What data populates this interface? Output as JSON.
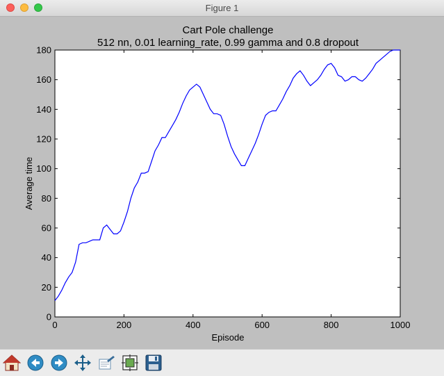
{
  "window": {
    "title": "Figure 1"
  },
  "toolbar": {
    "buttons": [
      {
        "name": "home-button",
        "icon": "home-icon"
      },
      {
        "name": "back-button",
        "icon": "back-arrow-icon"
      },
      {
        "name": "forward-button",
        "icon": "forward-arrow-icon"
      },
      {
        "name": "pan-button",
        "icon": "pan-move-icon"
      },
      {
        "name": "zoom-rect-button",
        "icon": "zoom-rectangle-icon"
      },
      {
        "name": "subplots-button",
        "icon": "subplots-config-icon"
      },
      {
        "name": "save-button",
        "icon": "save-floppy-icon"
      }
    ]
  },
  "chart_data": {
    "type": "line",
    "title": "Cart Pole challenge",
    "subtitle": "512 nn, 0.01 learning_rate, 0.99 gamma and 0.8 dropout",
    "xlabel": "Episode",
    "ylabel": "Average time",
    "xlim": [
      0,
      1000
    ],
    "ylim": [
      0,
      180
    ],
    "xticks": [
      0,
      200,
      400,
      600,
      800,
      1000
    ],
    "yticks": [
      0,
      20,
      40,
      60,
      80,
      100,
      120,
      140,
      160,
      180
    ],
    "grid": false,
    "legend": "none",
    "line_color": "#0000ff",
    "series": [
      {
        "x": [
          0,
          10,
          20,
          30,
          40,
          50,
          60,
          65,
          70,
          80,
          90,
          100,
          110,
          120,
          130,
          140,
          150,
          160,
          170,
          180,
          190,
          200,
          210,
          220,
          230,
          240,
          250,
          260,
          270,
          280,
          290,
          300,
          310,
          320,
          330,
          340,
          350,
          360,
          370,
          380,
          390,
          400,
          410,
          420,
          430,
          440,
          450,
          460,
          470,
          480,
          490,
          500,
          510,
          520,
          530,
          540,
          550,
          560,
          570,
          580,
          590,
          600,
          610,
          620,
          630,
          640,
          650,
          660,
          670,
          680,
          690,
          700,
          710,
          720,
          730,
          740,
          750,
          760,
          770,
          780,
          790,
          800,
          810,
          820,
          830,
          840,
          850,
          860,
          870,
          880,
          890,
          900,
          910,
          920,
          930,
          940,
          950,
          960,
          970,
          980,
          990,
          1000
        ],
        "y": [
          11,
          14,
          18,
          23,
          27,
          30,
          37,
          43,
          49,
          50,
          50,
          51,
          52,
          52,
          52,
          60,
          62,
          59,
          56,
          56,
          58,
          64,
          71,
          80,
          87,
          91,
          97,
          97,
          98,
          105,
          112,
          116,
          121,
          121,
          125,
          129,
          133,
          138,
          144,
          149,
          153,
          155,
          157,
          155,
          150,
          145,
          140,
          137,
          137,
          136,
          130,
          122,
          115,
          110,
          106,
          102,
          102,
          107,
          112,
          117,
          123,
          130,
          136,
          138,
          139,
          139,
          143,
          147,
          152,
          156,
          161,
          164,
          166,
          163,
          159,
          156,
          158,
          160,
          163,
          167,
          170,
          171,
          168,
          163,
          162,
          159,
          160,
          162,
          162,
          160,
          159,
          161,
          164,
          167,
          171,
          173,
          175,
          177,
          179,
          180,
          180,
          180
        ]
      }
    ]
  }
}
